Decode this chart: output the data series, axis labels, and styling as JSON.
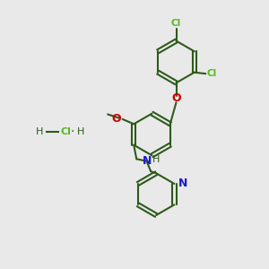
{
  "background_color": "#e9e9e9",
  "bond_color": "#2d5a1b",
  "cl_color": "#5ab526",
  "o_color": "#cc0000",
  "n_color": "#1a1acc",
  "bond_width": 1.5,
  "dbo": 0.07,
  "figsize": [
    3.0,
    3.0
  ],
  "dpi": 100,
  "xlim": [
    0,
    10
  ],
  "ylim": [
    0,
    10
  ]
}
